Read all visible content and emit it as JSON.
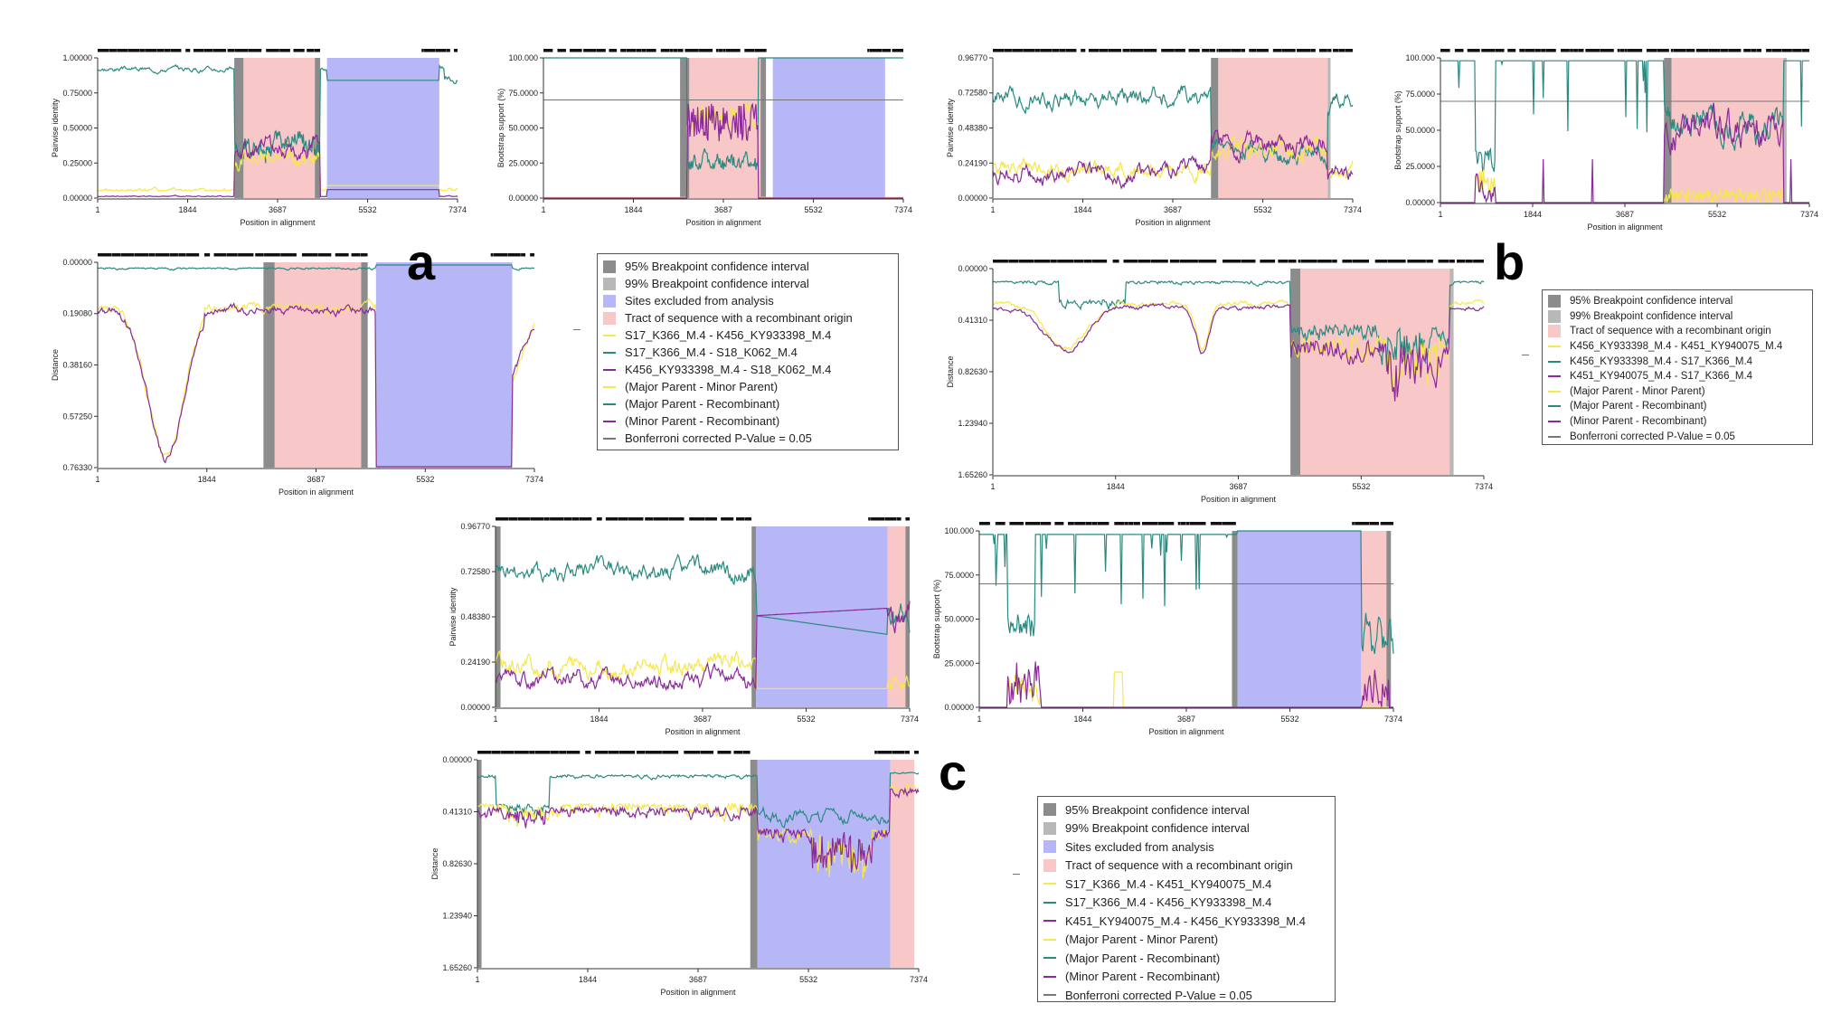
{
  "labels": {
    "a": "a",
    "b": "b",
    "c": "c"
  },
  "colors": {
    "bp95": "#8c8c8c",
    "bp99": "#b8b8b8",
    "excluded": "#b7b7f7",
    "tract": "#f8c8c8",
    "yellow": "#f5e84a",
    "teal": "#2a8a80",
    "purple": "#8a2a98",
    "pvalue": "#777777"
  },
  "legends": {
    "a": [
      {
        "type": "box",
        "color": "bp95",
        "label": "95% Breakpoint confidence interval"
      },
      {
        "type": "box",
        "color": "bp99",
        "label": "99% Breakpoint confidence interval"
      },
      {
        "type": "box",
        "color": "excluded",
        "label": "Sites excluded from analysis"
      },
      {
        "type": "box",
        "color": "tract",
        "label": "Tract of sequence with a recombinant origin"
      },
      {
        "type": "line",
        "color": "yellow",
        "label": "S17_K366_M.4 - K456_KY933398_M.4"
      },
      {
        "type": "line",
        "color": "teal",
        "label": "S17_K366_M.4 - S18_K062_M.4"
      },
      {
        "type": "line",
        "color": "purple",
        "label": "K456_KY933398_M.4 - S18_K062_M.4"
      },
      {
        "type": "line",
        "color": "yellow",
        "label": "(Major Parent - Minor Parent)"
      },
      {
        "type": "line",
        "color": "teal",
        "label": "(Major Parent - Recombinant)"
      },
      {
        "type": "line",
        "color": "purple",
        "label": "(Minor Parent - Recombinant)"
      },
      {
        "type": "line",
        "color": "pvalue",
        "label": "Bonferroni corrected P-Value = 0.05"
      }
    ],
    "b": [
      {
        "type": "box",
        "color": "bp95",
        "label": "95% Breakpoint confidence interval"
      },
      {
        "type": "box",
        "color": "bp99",
        "label": "99% Breakpoint confidence interval"
      },
      {
        "type": "box",
        "color": "tract",
        "label": "Tract of sequence with a recombinant origin"
      },
      {
        "type": "line",
        "color": "yellow",
        "label": "K456_KY933398_M.4 - K451_KY940075_M.4"
      },
      {
        "type": "line",
        "color": "teal",
        "label": "K456_KY933398_M.4 - S17_K366_M.4"
      },
      {
        "type": "line",
        "color": "purple",
        "label": "K451_KY940075_M.4 - S17_K366_M.4"
      },
      {
        "type": "line",
        "color": "yellow",
        "label": "(Major Parent - Minor Parent)"
      },
      {
        "type": "line",
        "color": "teal",
        "label": "(Major Parent - Recombinant)"
      },
      {
        "type": "line",
        "color": "purple",
        "label": "(Minor Parent - Recombinant)"
      },
      {
        "type": "line",
        "color": "pvalue",
        "label": "Bonferroni corrected P-Value = 0.05"
      }
    ],
    "c": [
      {
        "type": "box",
        "color": "bp95",
        "label": "95% Breakpoint confidence interval"
      },
      {
        "type": "box",
        "color": "bp99",
        "label": "99% Breakpoint confidence interval"
      },
      {
        "type": "box",
        "color": "excluded",
        "label": "Sites excluded from analysis"
      },
      {
        "type": "box",
        "color": "tract",
        "label": "Tract of sequence with a recombinant origin"
      },
      {
        "type": "line",
        "color": "yellow",
        "label": "S17_K366_M.4 - K451_KY940075_M.4"
      },
      {
        "type": "line",
        "color": "teal",
        "label": "S17_K366_M.4 - K456_KY933398_M.4"
      },
      {
        "type": "line",
        "color": "purple",
        "label": "K451_KY940075_M.4 - K456_KY933398_M.4"
      },
      {
        "type": "line",
        "color": "yellow",
        "label": "(Major Parent - Minor Parent)"
      },
      {
        "type": "line",
        "color": "teal",
        "label": "(Major Parent - Recombinant)"
      },
      {
        "type": "line",
        "color": "purple",
        "label": "(Minor Parent - Recombinant)"
      },
      {
        "type": "line",
        "color": "pvalue",
        "label": "Bonferroni corrected P-Value = 0.05"
      }
    ]
  },
  "chart_data": [
    {
      "id": "a-identity",
      "type": "line",
      "panel": "a",
      "xlabel": "Position in alignment",
      "ylabel": "Pairwise identity",
      "xlim": [
        1,
        7374
      ],
      "ylim": [
        0,
        1
      ],
      "xticks": [
        "1",
        "1844",
        "3687",
        "5532",
        "7374"
      ],
      "yticks": [
        "0.00000",
        "0.25000",
        "0.50000",
        "0.75000",
        "1.00000"
      ],
      "yvals": [
        0,
        0.25,
        0.5,
        0.75,
        1
      ],
      "invert": false,
      "regions": [
        {
          "kind": "bp95",
          "start": 2800,
          "end": 2990
        },
        {
          "kind": "tract",
          "start": 2990,
          "end": 4450
        },
        {
          "kind": "bp95",
          "start": 4450,
          "end": 4560
        },
        {
          "kind": "excluded",
          "start": 4700,
          "end": 7000
        }
      ],
      "series": [
        {
          "name": "S17_K366_M.4 - S18_K062_M.4",
          "color": "teal",
          "seed": 3,
          "mode": "a-id-teal"
        },
        {
          "name": "S17_K366_M.4 - K456_KY933398_M.4",
          "color": "yellow",
          "seed": 7,
          "mode": "a-id-yellow"
        },
        {
          "name": "K456_KY933398_M.4 - S18_K062_M.4",
          "color": "purple",
          "seed": 11,
          "mode": "a-id-purple"
        }
      ]
    },
    {
      "id": "a-bootstrap",
      "type": "line",
      "panel": "a",
      "xlabel": "Position in alignment",
      "ylabel": "Bootstrap support (%)",
      "xlim": [
        1,
        7374
      ],
      "ylim": [
        0,
        100
      ],
      "xticks": [
        "1",
        "1844",
        "3687",
        "5532",
        "7374"
      ],
      "yticks": [
        "0.00000",
        "25.0000",
        "50.0000",
        "75.0000",
        "100.000"
      ],
      "yvals": [
        0,
        25,
        50,
        75,
        100
      ],
      "invert": false,
      "threshold": 70,
      "regions": [
        {
          "kind": "bp95",
          "start": 2800,
          "end": 2990
        },
        {
          "kind": "tract",
          "start": 2990,
          "end": 4450
        },
        {
          "kind": "bp95",
          "start": 4450,
          "end": 4560
        },
        {
          "kind": "excluded",
          "start": 4700,
          "end": 7000
        }
      ],
      "series": [
        {
          "name": "S17_K366_M.4 - S18_K062_M.4",
          "color": "teal",
          "seed": 5,
          "mode": "a-bs-teal"
        },
        {
          "name": "S17_K366_M.4 - K456_KY933398_M.4",
          "color": "yellow",
          "seed": 9,
          "mode": "a-bs-yellow"
        },
        {
          "name": "K456_KY933398_M.4 - S18_K062_M.4",
          "color": "purple",
          "seed": 13,
          "mode": "a-bs-purple"
        }
      ]
    },
    {
      "id": "a-distance",
      "type": "line",
      "panel": "a",
      "xlabel": "Position in alignment",
      "ylabel": "Distance",
      "xlim": [
        1,
        7374
      ],
      "ylim": [
        0,
        0.7633
      ],
      "xticks": [
        "1",
        "1844",
        "3687",
        "5532",
        "7374"
      ],
      "yticks": [
        "0.00000",
        "0.19080",
        "0.38160",
        "0.57250",
        "0.76330"
      ],
      "yvals": [
        0,
        0.1908,
        0.3816,
        0.5725,
        0.7633
      ],
      "invert": true,
      "regions": [
        {
          "kind": "bp95",
          "start": 2800,
          "end": 2990
        },
        {
          "kind": "tract",
          "start": 2990,
          "end": 4450
        },
        {
          "kind": "bp95",
          "start": 4450,
          "end": 4560
        },
        {
          "kind": "excluded",
          "start": 4700,
          "end": 7000
        }
      ],
      "series": [
        {
          "name": "S17_K366_M.4 - S18_K062_M.4",
          "color": "teal",
          "seed": 15,
          "mode": "a-d-teal"
        },
        {
          "name": "S17_K366_M.4 - K456_KY933398_M.4",
          "color": "yellow",
          "seed": 17,
          "mode": "a-d-yellow"
        },
        {
          "name": "K456_KY933398_M.4 - S18_K062_M.4",
          "color": "purple",
          "seed": 19,
          "mode": "a-d-purple"
        }
      ]
    },
    {
      "id": "b-identity",
      "type": "line",
      "panel": "b",
      "xlabel": "Position in alignment",
      "ylabel": "Pairwise identity",
      "xlim": [
        1,
        7374
      ],
      "ylim": [
        0,
        0.9677
      ],
      "xticks": [
        "1",
        "1844",
        "3687",
        "5532",
        "7374"
      ],
      "yticks": [
        "0.00000",
        "0.24190",
        "0.48380",
        "0.72580",
        "0.96770"
      ],
      "yvals": [
        0,
        0.2419,
        0.4838,
        0.7258,
        0.9677
      ],
      "invert": false,
      "regions": [
        {
          "kind": "bp95",
          "start": 4470,
          "end": 4620
        },
        {
          "kind": "tract",
          "start": 4620,
          "end": 6860
        },
        {
          "kind": "bp99",
          "start": 6860,
          "end": 6920
        }
      ],
      "series": [
        {
          "name": "K456_KY933398_M.4 - S17_K366_M.4",
          "color": "teal",
          "seed": 21,
          "mode": "b-id-teal"
        },
        {
          "name": "K456_KY933398_M.4 - K451_KY940075_M.4",
          "color": "yellow",
          "seed": 23,
          "mode": "b-id-yellow"
        },
        {
          "name": "K451_KY940075_M.4 - S17_K366_M.4",
          "color": "purple",
          "seed": 25,
          "mode": "b-id-purple"
        }
      ]
    },
    {
      "id": "b-bootstrap",
      "type": "line",
      "panel": "b",
      "xlabel": "Position in alignment",
      "ylabel": "Bootstrap support (%)",
      "xlim": [
        1,
        7374
      ],
      "ylim": [
        0,
        100
      ],
      "xticks": [
        "1",
        "1844",
        "3687",
        "5532",
        "7374"
      ],
      "yticks": [
        "0.00000",
        "25.0000",
        "50.0000",
        "75.0000",
        "100.000"
      ],
      "yvals": [
        0,
        25,
        50,
        75,
        100
      ],
      "invert": false,
      "threshold": 70,
      "regions": [
        {
          "kind": "bp95",
          "start": 4470,
          "end": 4620
        },
        {
          "kind": "tract",
          "start": 4620,
          "end": 6860
        },
        {
          "kind": "bp99",
          "start": 6860,
          "end": 6920
        }
      ],
      "series": [
        {
          "name": "K456_KY933398_M.4 - S17_K366_M.4",
          "color": "teal",
          "seed": 27,
          "mode": "b-bs-teal"
        },
        {
          "name": "K456_KY933398_M.4 - K451_KY940075_M.4",
          "color": "yellow",
          "seed": 29,
          "mode": "b-bs-yellow"
        },
        {
          "name": "K451_KY940075_M.4 - S17_K366_M.4",
          "color": "purple",
          "seed": 31,
          "mode": "b-bs-purple"
        }
      ]
    },
    {
      "id": "b-distance",
      "type": "line",
      "panel": "b",
      "xlabel": "Position in alignment",
      "ylabel": "Distance",
      "xlim": [
        1,
        7374
      ],
      "ylim": [
        0,
        1.6526
      ],
      "xticks": [
        "1",
        "1844",
        "3687",
        "5532",
        "7374"
      ],
      "yticks": [
        "0.00000",
        "0.41310",
        "0.82630",
        "1.23940",
        "1.65260"
      ],
      "yvals": [
        0,
        0.4131,
        0.8263,
        1.2394,
        1.6526
      ],
      "invert": true,
      "regions": [
        {
          "kind": "bp95",
          "start": 4470,
          "end": 4620
        },
        {
          "kind": "tract",
          "start": 4620,
          "end": 6860
        },
        {
          "kind": "bp99",
          "start": 6860,
          "end": 6920
        }
      ],
      "series": [
        {
          "name": "K456_KY933398_M.4 - S17_K366_M.4",
          "color": "teal",
          "seed": 33,
          "mode": "b-d-teal"
        },
        {
          "name": "K456_KY933398_M.4 - K451_KY940075_M.4",
          "color": "yellow",
          "seed": 35,
          "mode": "b-d-yellow"
        },
        {
          "name": "K451_KY940075_M.4 - S17_K366_M.4",
          "color": "purple",
          "seed": 37,
          "mode": "b-d-purple"
        }
      ]
    },
    {
      "id": "c-identity",
      "type": "line",
      "panel": "c",
      "xlabel": "Position in alignment",
      "ylabel": "Pairwise identity",
      "xlim": [
        1,
        7374
      ],
      "ylim": [
        0,
        0.9677
      ],
      "xticks": [
        "1",
        "1844",
        "3687",
        "5532",
        "7374"
      ],
      "yticks": [
        "0.00000",
        "0.24190",
        "0.48380",
        "0.72580",
        "0.96770"
      ],
      "yvals": [
        0,
        0.2419,
        0.4838,
        0.7258,
        0.9677
      ],
      "invert": false,
      "regions": [
        {
          "kind": "bp95",
          "start": 1,
          "end": 90
        },
        {
          "kind": "bp95",
          "start": 4560,
          "end": 4640
        },
        {
          "kind": "excluded",
          "start": 4640,
          "end": 6980
        },
        {
          "kind": "tract",
          "start": 6980,
          "end": 7300
        },
        {
          "kind": "bp95",
          "start": 7300,
          "end": 7374
        }
      ],
      "series": [
        {
          "name": "S17_K366_M.4 - K456_KY933398_M.4",
          "color": "teal",
          "seed": 41,
          "mode": "c-id-teal"
        },
        {
          "name": "S17_K366_M.4 - K451_KY940075_M.4",
          "color": "yellow",
          "seed": 43,
          "mode": "c-id-yellow"
        },
        {
          "name": "K451_KY940075_M.4 - K456_KY933398_M.4",
          "color": "purple",
          "seed": 45,
          "mode": "c-id-purple"
        }
      ]
    },
    {
      "id": "c-bootstrap",
      "type": "line",
      "panel": "c",
      "xlabel": "Position in alignment",
      "ylabel": "Bootstrap support (%)",
      "xlim": [
        1,
        7374
      ],
      "ylim": [
        0,
        100
      ],
      "xticks": [
        "1",
        "1844",
        "3687",
        "5532",
        "7374"
      ],
      "yticks": [
        "0.00000",
        "25.0000",
        "50.0000",
        "75.0000",
        "100.000"
      ],
      "yvals": [
        0,
        25,
        50,
        75,
        100
      ],
      "invert": false,
      "threshold": 70,
      "regions": [
        {
          "kind": "bp95",
          "start": 4500,
          "end": 4600
        },
        {
          "kind": "excluded",
          "start": 4600,
          "end": 6800
        },
        {
          "kind": "tract",
          "start": 6800,
          "end": 7250
        },
        {
          "kind": "bp95",
          "start": 7250,
          "end": 7330
        }
      ],
      "series": [
        {
          "name": "S17_K366_M.4 - K456_KY933398_M.4",
          "color": "teal",
          "seed": 47,
          "mode": "c-bs-teal"
        },
        {
          "name": "S17_K366_M.4 - K451_KY940075_M.4",
          "color": "yellow",
          "seed": 49,
          "mode": "c-bs-yellow"
        },
        {
          "name": "K451_KY940075_M.4 - K456_KY933398_M.4",
          "color": "purple",
          "seed": 51,
          "mode": "c-bs-purple"
        }
      ]
    },
    {
      "id": "c-distance",
      "type": "line",
      "panel": "c",
      "xlabel": "Position in alignment",
      "ylabel": "Distance",
      "xlim": [
        1,
        7374
      ],
      "ylim": [
        0,
        1.6526
      ],
      "xticks": [
        "1",
        "1844",
        "3687",
        "5532",
        "7374"
      ],
      "yticks": [
        "0.00000",
        "0.41310",
        "0.82630",
        "1.23940",
        "1.65260"
      ],
      "yvals": [
        0,
        0.4131,
        0.8263,
        1.2394,
        1.6526
      ],
      "invert": true,
      "regions": [
        {
          "kind": "bp95",
          "start": 1,
          "end": 70
        },
        {
          "kind": "bp95",
          "start": 4560,
          "end": 4680
        },
        {
          "kind": "excluded",
          "start": 4680,
          "end": 6900
        },
        {
          "kind": "tract",
          "start": 6900,
          "end": 7300
        }
      ],
      "series": [
        {
          "name": "S17_K366_M.4 - K456_KY933398_M.4",
          "color": "teal",
          "seed": 53,
          "mode": "c-d-teal"
        },
        {
          "name": "S17_K366_M.4 - K451_KY940075_M.4",
          "color": "yellow",
          "seed": 55,
          "mode": "c-d-yellow"
        },
        {
          "name": "K451_KY940075_M.4 - K456_KY933398_M.4",
          "color": "purple",
          "seed": 57,
          "mode": "c-d-purple"
        }
      ]
    }
  ]
}
